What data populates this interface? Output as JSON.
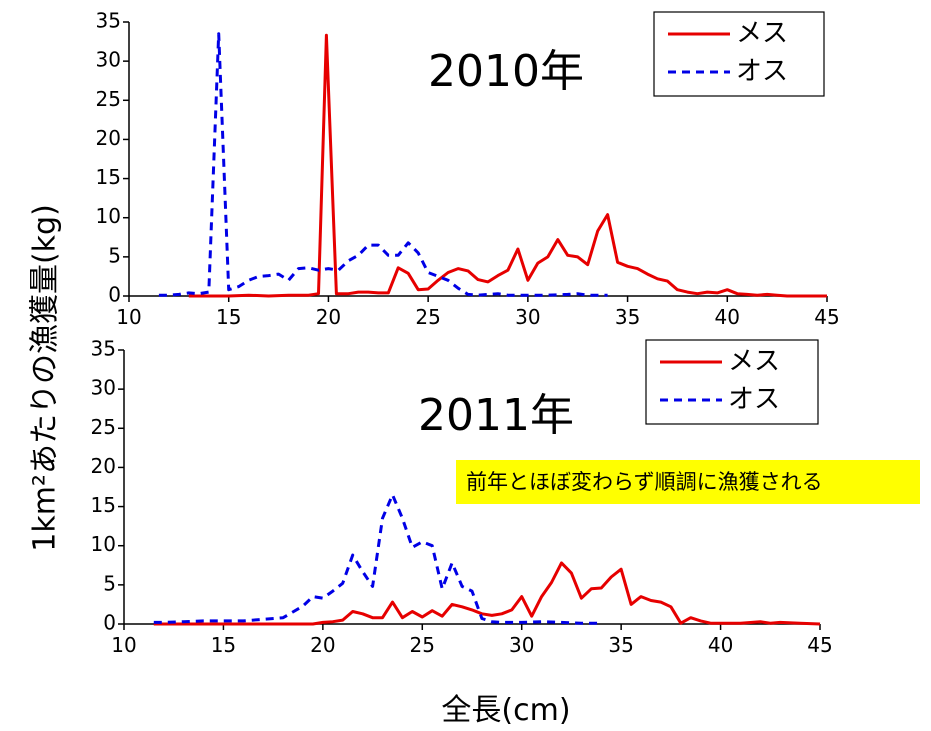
{
  "ylabel": "1km²あたりの漁獲量(kg)",
  "xlabel": "全長(cm)",
  "legend": {
    "female": "メス",
    "male": "オス"
  },
  "colors": {
    "female": "#e60000",
    "male": "#0000e6",
    "annotation_bg": "#ffff00"
  },
  "chart_data": [
    {
      "type": "line",
      "title": "2010年",
      "xlim": [
        10,
        45
      ],
      "ylim": [
        0,
        35
      ],
      "xticks": [
        10,
        15,
        20,
        25,
        30,
        35,
        40,
        45
      ],
      "yticks": [
        0,
        5,
        10,
        15,
        20,
        25,
        30,
        35
      ],
      "legend_position": "top-right",
      "series": [
        {
          "name": "メス",
          "style": "solid",
          "color": "#e60000",
          "points": [
            [
              13,
              0
            ],
            [
              14,
              0
            ],
            [
              15,
              0
            ],
            [
              16,
              0.1
            ],
            [
              17,
              0
            ],
            [
              18,
              0.1
            ],
            [
              19,
              0.1
            ],
            [
              19.5,
              0.3
            ],
            [
              19.9,
              33.3
            ],
            [
              20.4,
              0.3
            ],
            [
              21,
              0.3
            ],
            [
              21.5,
              0.5
            ],
            [
              22,
              0.5
            ],
            [
              22.5,
              0.4
            ],
            [
              23,
              0.4
            ],
            [
              23.5,
              3.6
            ],
            [
              24,
              2.9
            ],
            [
              24.5,
              0.8
            ],
            [
              25,
              0.9
            ],
            [
              25.5,
              2
            ],
            [
              26,
              3
            ],
            [
              26.5,
              3.5
            ],
            [
              27,
              3.2
            ],
            [
              27.5,
              2.1
            ],
            [
              28,
              1.8
            ],
            [
              28.5,
              2.6
            ],
            [
              29,
              3.3
            ],
            [
              29.5,
              6
            ],
            [
              30,
              2
            ],
            [
              30.5,
              4.2
            ],
            [
              31,
              5
            ],
            [
              31.5,
              7.2
            ],
            [
              32,
              5.2
            ],
            [
              32.5,
              5
            ],
            [
              33,
              4
            ],
            [
              33.5,
              8.3
            ],
            [
              34,
              10.4
            ],
            [
              34.5,
              4.3
            ],
            [
              35,
              3.8
            ],
            [
              35.5,
              3.5
            ],
            [
              36,
              2.8
            ],
            [
              36.5,
              2.2
            ],
            [
              37,
              1.9
            ],
            [
              37.5,
              0.8
            ],
            [
              38,
              0.5
            ],
            [
              38.5,
              0.3
            ],
            [
              39,
              0.5
            ],
            [
              39.5,
              0.4
            ],
            [
              40,
              0.8
            ],
            [
              40.5,
              0.3
            ],
            [
              41,
              0.2
            ],
            [
              41.5,
              0.1
            ],
            [
              42,
              0.2
            ],
            [
              42.5,
              0.1
            ],
            [
              43,
              0
            ],
            [
              44,
              0
            ],
            [
              45,
              0
            ]
          ]
        },
        {
          "name": "オス",
          "style": "dashed",
          "color": "#0000e6",
          "points": [
            [
              11.5,
              0.1
            ],
            [
              12,
              0.1
            ],
            [
              12.5,
              0.2
            ],
            [
              13,
              0.4
            ],
            [
              13.5,
              0.3
            ],
            [
              14,
              0.5
            ],
            [
              14.5,
              33.5
            ],
            [
              15,
              0.8
            ],
            [
              15.5,
              1.2
            ],
            [
              16,
              2
            ],
            [
              16.5,
              2.5
            ],
            [
              17,
              2.6
            ],
            [
              17.5,
              2.8
            ],
            [
              18,
              2
            ],
            [
              18.5,
              3.5
            ],
            [
              19,
              3.6
            ],
            [
              19.5,
              3.3
            ],
            [
              20,
              3.5
            ],
            [
              20.5,
              3.3
            ],
            [
              21,
              4.5
            ],
            [
              21.5,
              5.2
            ],
            [
              22,
              6.5
            ],
            [
              22.5,
              6.5
            ],
            [
              23,
              5.2
            ],
            [
              23.5,
              5.2
            ],
            [
              24,
              6.8
            ],
            [
              24.5,
              5.5
            ],
            [
              25,
              3
            ],
            [
              25.5,
              2.5
            ],
            [
              26,
              2
            ],
            [
              26.5,
              1
            ],
            [
              27,
              0.2
            ],
            [
              27.5,
              0.1
            ],
            [
              28,
              0.2
            ],
            [
              28.5,
              0.3
            ],
            [
              29,
              0.1
            ],
            [
              30,
              0.1
            ],
            [
              31,
              0.1
            ],
            [
              32,
              0.2
            ],
            [
              32.5,
              0.3
            ],
            [
              33,
              0.1
            ],
            [
              34,
              0.1
            ]
          ]
        }
      ]
    },
    {
      "type": "line",
      "title": "2011年",
      "xlim": [
        10,
        45
      ],
      "ylim": [
        0,
        35
      ],
      "xticks": [
        10,
        15,
        20,
        25,
        30,
        35,
        40,
        45
      ],
      "yticks": [
        0,
        5,
        10,
        15,
        20,
        25,
        30,
        35
      ],
      "legend_position": "top-right",
      "annotation": "前年とほぼ変わらず順調に漁獲される",
      "series": [
        {
          "name": "メス",
          "style": "solid",
          "color": "#e60000",
          "points": [
            [
              11.5,
              0
            ],
            [
              12,
              0
            ],
            [
              13,
              0
            ],
            [
              14,
              0
            ],
            [
              15,
              0
            ],
            [
              16,
              0
            ],
            [
              17,
              0
            ],
            [
              18,
              0
            ],
            [
              19,
              0
            ],
            [
              19.5,
              0
            ],
            [
              20,
              0.2
            ],
            [
              20.5,
              0.3
            ],
            [
              21,
              0.5
            ],
            [
              21.5,
              1.6
            ],
            [
              22,
              1.3
            ],
            [
              22.5,
              0.8
            ],
            [
              23,
              0.8
            ],
            [
              23.5,
              2.8
            ],
            [
              24,
              0.8
            ],
            [
              24.5,
              1.6
            ],
            [
              25,
              0.9
            ],
            [
              25.5,
              1.7
            ],
            [
              26,
              1
            ],
            [
              26.5,
              2.5
            ],
            [
              27,
              2.2
            ],
            [
              27.5,
              1.8
            ],
            [
              28,
              1.3
            ],
            [
              28.5,
              1.1
            ],
            [
              29,
              1.3
            ],
            [
              29.5,
              1.8
            ],
            [
              30,
              3.5
            ],
            [
              30.5,
              1
            ],
            [
              31,
              3.5
            ],
            [
              31.5,
              5.3
            ],
            [
              32,
              7.8
            ],
            [
              32.5,
              6.5
            ],
            [
              33,
              3.3
            ],
            [
              33.5,
              4.5
            ],
            [
              34,
              4.6
            ],
            [
              34.5,
              6
            ],
            [
              35,
              7
            ],
            [
              35.5,
              2.5
            ],
            [
              36,
              3.5
            ],
            [
              36.5,
              3
            ],
            [
              37,
              2.8
            ],
            [
              37.5,
              2.2
            ],
            [
              38,
              0.1
            ],
            [
              38.5,
              0.8
            ],
            [
              39,
              0.4
            ],
            [
              39.5,
              0.1
            ],
            [
              40,
              0.1
            ],
            [
              41,
              0.1
            ],
            [
              42,
              0.3
            ],
            [
              42.5,
              0.1
            ],
            [
              43,
              0.2
            ],
            [
              44,
              0.1
            ],
            [
              45,
              0
            ]
          ]
        },
        {
          "name": "オス",
          "style": "dashed",
          "color": "#0000e6",
          "points": [
            [
              11.5,
              0.2
            ],
            [
              12,
              0.2
            ],
            [
              13,
              0.3
            ],
            [
              14,
              0.4
            ],
            [
              15,
              0.4
            ],
            [
              16,
              0.4
            ],
            [
              17,
              0.6
            ],
            [
              18,
              0.8
            ],
            [
              19,
              2.3
            ],
            [
              19.5,
              3.5
            ],
            [
              20,
              3.3
            ],
            [
              20.5,
              4.2
            ],
            [
              21,
              5.2
            ],
            [
              21.5,
              8.8
            ],
            [
              22,
              6.7
            ],
            [
              22.5,
              4.8
            ],
            [
              23,
              13.5
            ],
            [
              23.5,
              16.5
            ],
            [
              24,
              13.5
            ],
            [
              24.5,
              9.8
            ],
            [
              25,
              10.5
            ],
            [
              25.5,
              10
            ],
            [
              26,
              4.5
            ],
            [
              26.5,
              7.8
            ],
            [
              27,
              4.8
            ],
            [
              27.5,
              4.2
            ],
            [
              28,
              0.7
            ],
            [
              28.5,
              0.3
            ],
            [
              29,
              0.2
            ],
            [
              30,
              0.2
            ],
            [
              31,
              0.3
            ],
            [
              32,
              0.2
            ],
            [
              33,
              0.1
            ],
            [
              34,
              0.1
            ]
          ]
        }
      ]
    }
  ]
}
